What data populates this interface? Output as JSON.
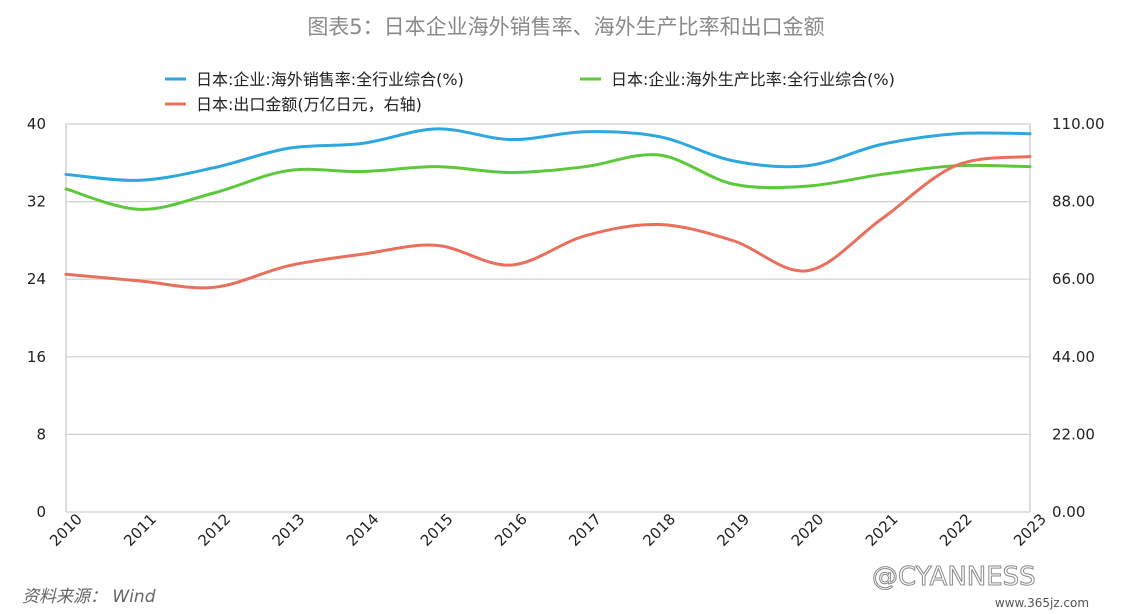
{
  "chart_data": {
    "type": "line",
    "title": "图表5：日本企业海外销售率、海外生产比率和出口金额",
    "categories": [
      "2010",
      "2011",
      "2012",
      "2013",
      "2014",
      "2015",
      "2016",
      "2017",
      "2018",
      "2019",
      "2020",
      "2021",
      "2022",
      "2023"
    ],
    "left_axis": {
      "ticks": [
        "0",
        "8",
        "16",
        "24",
        "32",
        "40"
      ],
      "ylim": [
        0,
        40
      ]
    },
    "right_axis": {
      "ticks": [
        "0.00",
        "22.00",
        "44.00",
        "66.00",
        "88.00",
        "110.00"
      ],
      "ylim": [
        0,
        110
      ]
    },
    "grid": true,
    "legend_position": "top",
    "series": [
      {
        "name": "日本:企业:海外销售率:全行业综合(%)",
        "axis": "left",
        "color": "#2ea7de",
        "values": [
          34.8,
          34.2,
          35.5,
          37.5,
          38.0,
          39.5,
          38.4,
          39.2,
          38.7,
          36.2,
          35.7,
          37.9,
          39.0,
          39.0
        ]
      },
      {
        "name": "日本:企业:海外生产比率:全行业综合(%)",
        "axis": "left",
        "color": "#5cc83a",
        "values": [
          33.3,
          31.2,
          32.9,
          35.2,
          35.1,
          35.6,
          35.0,
          35.6,
          36.8,
          33.8,
          33.6,
          34.8,
          35.7,
          35.6
        ]
      },
      {
        "name": "日本:出口金额(万亿日元，右轴)",
        "axis": "right",
        "color": "#e8705c",
        "values": [
          67.4,
          65.5,
          63.7,
          69.8,
          73.1,
          75.6,
          70.0,
          78.3,
          81.5,
          76.9,
          68.4,
          83.1,
          98.2,
          100.8
        ]
      }
    ]
  },
  "source": "资料来源： Wind",
  "watermark": "@CYANNESS",
  "watermark_url": "www.365jz.com"
}
